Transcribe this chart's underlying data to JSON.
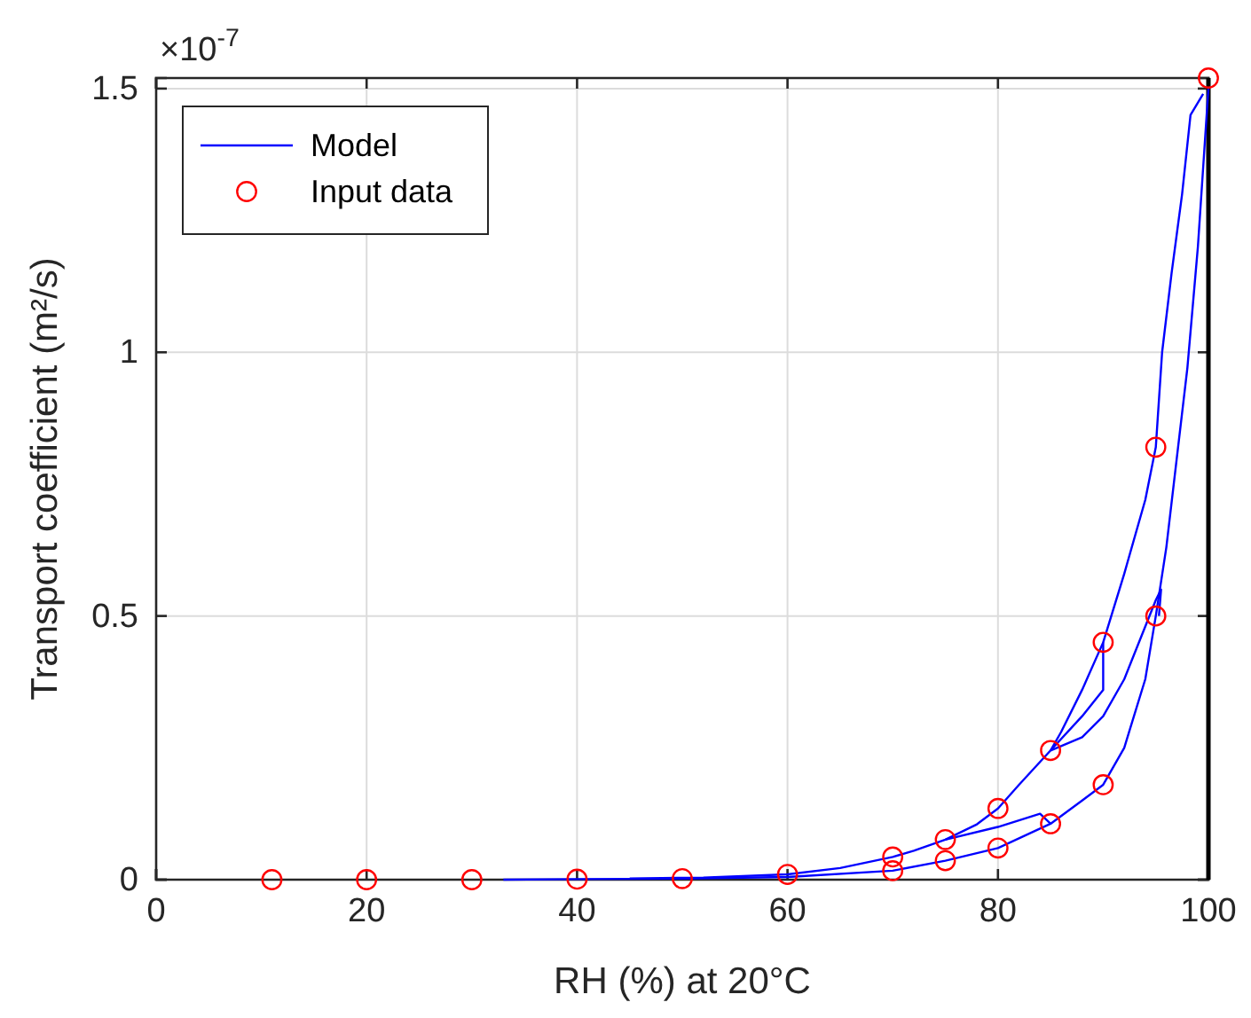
{
  "chart_data": {
    "type": "line",
    "xlabel": "RH (%) at 20°C",
    "ylabel": "Transport coefficient (m²/s)",
    "annotations": [
      "×10$^{-7}$"
    ],
    "xlim": [
      0,
      100
    ],
    "xticks": [
      0,
      20,
      40,
      60,
      80,
      100
    ],
    "ylim": [
      0,
      1.52
    ],
    "yticks": [
      0,
      0.5,
      1,
      1.5
    ],
    "grid": true,
    "legend": "top left",
    "series": [
      {
        "name": "Model",
        "color": "#0000ff",
        "marker": "none",
        "x": [
          33,
          40,
          50,
          60,
          70,
          75,
          80,
          85,
          88,
          90,
          92,
          94,
          95,
          96,
          97,
          98,
          99,
          99.6,
          100
        ],
        "values": [
          0,
          0.001,
          0.002,
          0.005,
          0.017,
          0.036,
          0.06,
          0.106,
          0.15,
          0.18,
          0.25,
          0.38,
          0.5,
          0.63,
          0.8,
          0.97,
          1.2,
          1.38,
          1.5
        ]
      },
      {
        "color": "#0000ff",
        "marker": "none",
        "x": [
          99.5,
          98.3,
          97.5,
          96.5,
          95.6,
          95,
          94,
          92,
          90,
          88,
          86,
          85,
          82,
          80,
          78,
          75,
          72,
          70,
          65,
          60,
          52,
          45
        ],
        "values": [
          1.49,
          1.45,
          1.3,
          1.15,
          1,
          0.82,
          0.72,
          0.58,
          0.45,
          0.36,
          0.28,
          0.245,
          0.18,
          0.135,
          0.105,
          0.076,
          0.055,
          0.043,
          0.022,
          0.01,
          0.004,
          0.002
        ]
      },
      {
        "color": "#0000ff",
        "marker": "none",
        "x": [
          85,
          88,
          90,
          90
        ],
        "values": [
          0.245,
          0.31,
          0.36,
          0.45
        ]
      },
      {
        "color": "#0000ff",
        "marker": "none",
        "x": [
          85,
          88,
          90,
          92,
          94,
          95,
          95.5,
          95.3
        ],
        "values": [
          0.245,
          0.27,
          0.31,
          0.38,
          0.48,
          0.53,
          0.55,
          0.5
        ]
      },
      {
        "color": "#0000ff",
        "marker": "none",
        "x": [
          75,
          80,
          84,
          85
        ],
        "values": [
          0.076,
          0.1,
          0.125,
          0.106
        ]
      },
      {
        "name": "Input data",
        "type": "scatter",
        "color": "#ff0000",
        "marker": "circle",
        "x": [
          11,
          20,
          30,
          40,
          50,
          60,
          70,
          70,
          75,
          75,
          80,
          80,
          85,
          85,
          90,
          90,
          95,
          95,
          100
        ],
        "values": [
          0,
          0,
          0,
          0.001,
          0.002,
          0.01,
          0.043,
          0.017,
          0.076,
          0.036,
          0.135,
          0.06,
          0.245,
          0.106,
          0.45,
          0.18,
          0.82,
          0.5,
          1.52
        ]
      }
    ]
  }
}
